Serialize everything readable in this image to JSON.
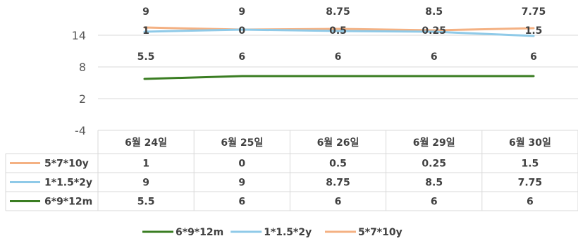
{
  "chart_data": {
    "type": "line",
    "categories": [
      "6월 24일",
      "6월 25일",
      "6월 26일",
      "6월 29일",
      "6월 30일"
    ],
    "ylim": [
      -4,
      14
    ],
    "yticks": [
      -4,
      2,
      8,
      14
    ],
    "grid": true,
    "legend_position": "bottom",
    "data_table": true,
    "series": [
      {
        "name": "5*7*10y",
        "values": [
          1,
          0,
          0.5,
          0.25,
          1.5
        ],
        "labels": [
          "1",
          "0",
          "0.5",
          "0.25",
          "1.5"
        ],
        "color": "#F4B183"
      },
      {
        "name": "1*1.5*2y",
        "values": [
          9,
          9,
          8.75,
          8.5,
          7.75
        ],
        "labels": [
          "9",
          "9",
          "8.75",
          "8.5",
          "7.75"
        ],
        "color": "#8FCAE8"
      },
      {
        "name": "6*9*12m",
        "values": [
          5.5,
          6,
          6,
          6,
          6
        ],
        "labels": [
          "5.5",
          "6",
          "6",
          "6",
          "6"
        ],
        "color": "#3A7D22"
      }
    ],
    "legend_order": [
      "6*9*12m",
      "1*1.5*2y",
      "5*7*10y"
    ]
  }
}
